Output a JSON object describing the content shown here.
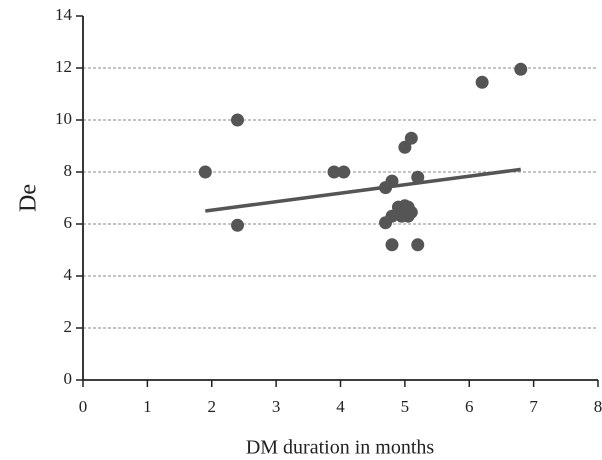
{
  "chart_data": {
    "type": "scatter",
    "x_label": "DM duration in months",
    "y_label": "De",
    "x": [
      1.9,
      2.4,
      2.4,
      3.9,
      4.05,
      4.7,
      4.8,
      4.7,
      4.8,
      4.8,
      4.9,
      4.95,
      5.0,
      5.0,
      5.05,
      5.05,
      5.1,
      5.1,
      5.2,
      5.2,
      6.2,
      6.8
    ],
    "values": [
      8,
      10,
      5.95,
      8,
      8,
      7.4,
      7.65,
      6.05,
      6.3,
      5.2,
      6.65,
      6.3,
      6.7,
      8.95,
      6.3,
      6.65,
      6.45,
      9.3,
      7.8,
      5.2,
      11.45,
      11.95
    ],
    "color": "#555555",
    "trend_line": {
      "x": [
        1.9,
        6.8
      ],
      "y": [
        6.5,
        8.1
      ],
      "color": "#555555"
    },
    "xlim": [
      0,
      8
    ],
    "xticks": [
      0,
      1,
      2,
      3,
      4,
      5,
      6,
      7,
      8
    ],
    "ylim": [
      0,
      14
    ],
    "yticks": [
      0,
      2,
      4,
      6,
      8,
      10,
      12,
      14
    ],
    "grid": true
  }
}
